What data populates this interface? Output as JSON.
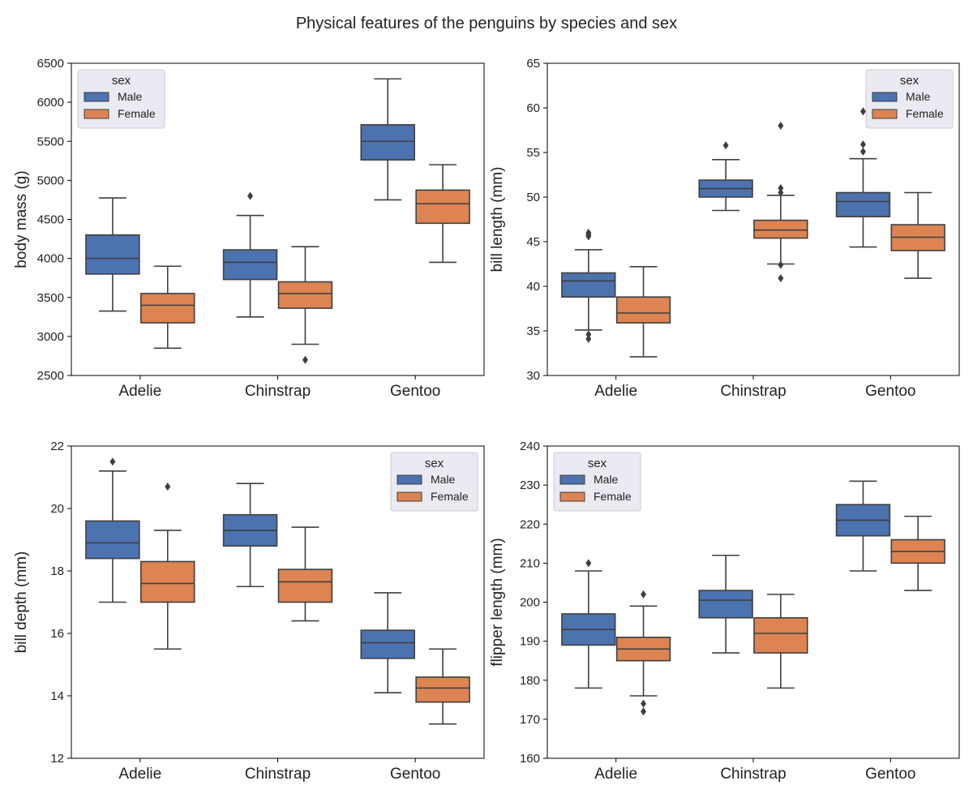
{
  "title": "Physical features of the penguins by species and sex",
  "colors": {
    "Male": "#4c72b0",
    "Female": "#dd8452",
    "line": "#3f3f3f"
  },
  "chart_data": [
    {
      "type": "box",
      "ylabel": "body mass (g)",
      "ylim": [
        2500,
        6500
      ],
      "yticks": [
        2500,
        3000,
        3500,
        4000,
        4500,
        5000,
        5500,
        6000,
        6500
      ],
      "categories": [
        "Adelie",
        "Chinstrap",
        "Gentoo"
      ],
      "legend": {
        "title": "sex",
        "position": "upper-left",
        "entries": [
          "Male",
          "Female"
        ]
      },
      "series": [
        {
          "name": "Male",
          "boxes": [
            {
              "whislo": 3325,
              "q1": 3800,
              "med": 4000,
              "q3": 4300,
              "whishi": 4775,
              "fliers": []
            },
            {
              "whislo": 3250,
              "q1": 3730,
              "med": 3950,
              "q3": 4110,
              "whishi": 4550,
              "fliers": [
                4800
              ]
            },
            {
              "whislo": 4750,
              "q1": 5262,
              "med": 5500,
              "q3": 5712,
              "whishi": 6300,
              "fliers": []
            }
          ]
        },
        {
          "name": "Female",
          "boxes": [
            {
              "whislo": 2850,
              "q1": 3175,
              "med": 3400,
              "q3": 3550,
              "whishi": 3900,
              "fliers": []
            },
            {
              "whislo": 2900,
              "q1": 3362,
              "med": 3550,
              "q3": 3700,
              "whishi": 4150,
              "fliers": [
                2700
              ]
            },
            {
              "whislo": 3950,
              "q1": 4450,
              "med": 4700,
              "q3": 4875,
              "whishi": 5200,
              "fliers": []
            }
          ]
        }
      ]
    },
    {
      "type": "box",
      "ylabel": "bill length (mm)",
      "ylim": [
        30,
        65
      ],
      "yticks": [
        30,
        35,
        40,
        45,
        50,
        55,
        60,
        65
      ],
      "categories": [
        "Adelie",
        "Chinstrap",
        "Gentoo"
      ],
      "legend": {
        "title": "sex",
        "position": "upper-right",
        "entries": [
          "Male",
          "Female"
        ]
      },
      "series": [
        {
          "name": "Male",
          "boxes": [
            {
              "whislo": 35.1,
              "q1": 38.8,
              "med": 40.6,
              "q3": 41.5,
              "whishi": 44.1,
              "fliers": [
                34.1,
                34.6,
                45.6,
                45.8,
                46.0
              ]
            },
            {
              "whislo": 48.5,
              "q1": 50.0,
              "med": 50.95,
              "q3": 51.9,
              "whishi": 54.2,
              "fliers": [
                55.8
              ]
            },
            {
              "whislo": 44.4,
              "q1": 47.8,
              "med": 49.5,
              "q3": 50.5,
              "whishi": 54.3,
              "fliers": [
                55.1,
                55.9,
                59.6
              ]
            }
          ]
        },
        {
          "name": "Female",
          "boxes": [
            {
              "whislo": 32.1,
              "q1": 35.9,
              "med": 37.0,
              "q3": 38.8,
              "whishi": 42.2,
              "fliers": []
            },
            {
              "whislo": 42.5,
              "q1": 45.4,
              "med": 46.3,
              "q3": 47.4,
              "whishi": 50.2,
              "fliers": [
                40.9,
                42.4,
                50.5,
                51.0,
                58.0
              ]
            },
            {
              "whislo": 40.9,
              "q1": 44.0,
              "med": 45.5,
              "q3": 46.9,
              "whishi": 50.5,
              "fliers": []
            }
          ]
        }
      ]
    },
    {
      "type": "box",
      "ylabel": "bill depth (mm)",
      "ylim": [
        12,
        22
      ],
      "yticks": [
        12,
        14,
        16,
        18,
        20,
        22
      ],
      "categories": [
        "Adelie",
        "Chinstrap",
        "Gentoo"
      ],
      "legend": {
        "title": "sex",
        "position": "upper-right",
        "entries": [
          "Male",
          "Female"
        ]
      },
      "series": [
        {
          "name": "Male",
          "boxes": [
            {
              "whislo": 17.0,
              "q1": 18.4,
              "med": 18.9,
              "q3": 19.6,
              "whishi": 21.2,
              "fliers": [
                21.5
              ]
            },
            {
              "whislo": 17.5,
              "q1": 18.8,
              "med": 19.3,
              "q3": 19.8,
              "whishi": 20.8,
              "fliers": []
            },
            {
              "whislo": 14.1,
              "q1": 15.2,
              "med": 15.7,
              "q3": 16.1,
              "whishi": 17.3,
              "fliers": []
            }
          ]
        },
        {
          "name": "Female",
          "boxes": [
            {
              "whislo": 15.5,
              "q1": 17.0,
              "med": 17.6,
              "q3": 18.3,
              "whishi": 19.3,
              "fliers": [
                20.7
              ]
            },
            {
              "whislo": 16.4,
              "q1": 17.0,
              "med": 17.65,
              "q3": 18.05,
              "whishi": 19.4,
              "fliers": []
            },
            {
              "whislo": 13.1,
              "q1": 13.8,
              "med": 14.25,
              "q3": 14.6,
              "whishi": 15.5,
              "fliers": []
            }
          ]
        }
      ]
    },
    {
      "type": "box",
      "ylabel": "flipper length (mm)",
      "ylim": [
        160,
        240
      ],
      "yticks": [
        160,
        170,
        180,
        190,
        200,
        210,
        220,
        230,
        240
      ],
      "categories": [
        "Adelie",
        "Chinstrap",
        "Gentoo"
      ],
      "legend": {
        "title": "sex",
        "position": "upper-left",
        "entries": [
          "Male",
          "Female"
        ]
      },
      "series": [
        {
          "name": "Male",
          "boxes": [
            {
              "whislo": 178,
              "q1": 189,
              "med": 193,
              "q3": 197,
              "whishi": 208,
              "fliers": [
                210
              ]
            },
            {
              "whislo": 187,
              "q1": 196,
              "med": 200.5,
              "q3": 203,
              "whishi": 212,
              "fliers": []
            },
            {
              "whislo": 208,
              "q1": 217,
              "med": 221,
              "q3": 225,
              "whishi": 231,
              "fliers": []
            }
          ]
        },
        {
          "name": "Female",
          "boxes": [
            {
              "whislo": 176,
              "q1": 185,
              "med": 188,
              "q3": 191,
              "whishi": 199,
              "fliers": [
                172,
                174,
                202
              ]
            },
            {
              "whislo": 178,
              "q1": 187,
              "med": 192,
              "q3": 196,
              "whishi": 202,
              "fliers": []
            },
            {
              "whislo": 203,
              "q1": 210,
              "med": 213,
              "q3": 216,
              "whishi": 222,
              "fliers": []
            }
          ]
        }
      ]
    }
  ]
}
